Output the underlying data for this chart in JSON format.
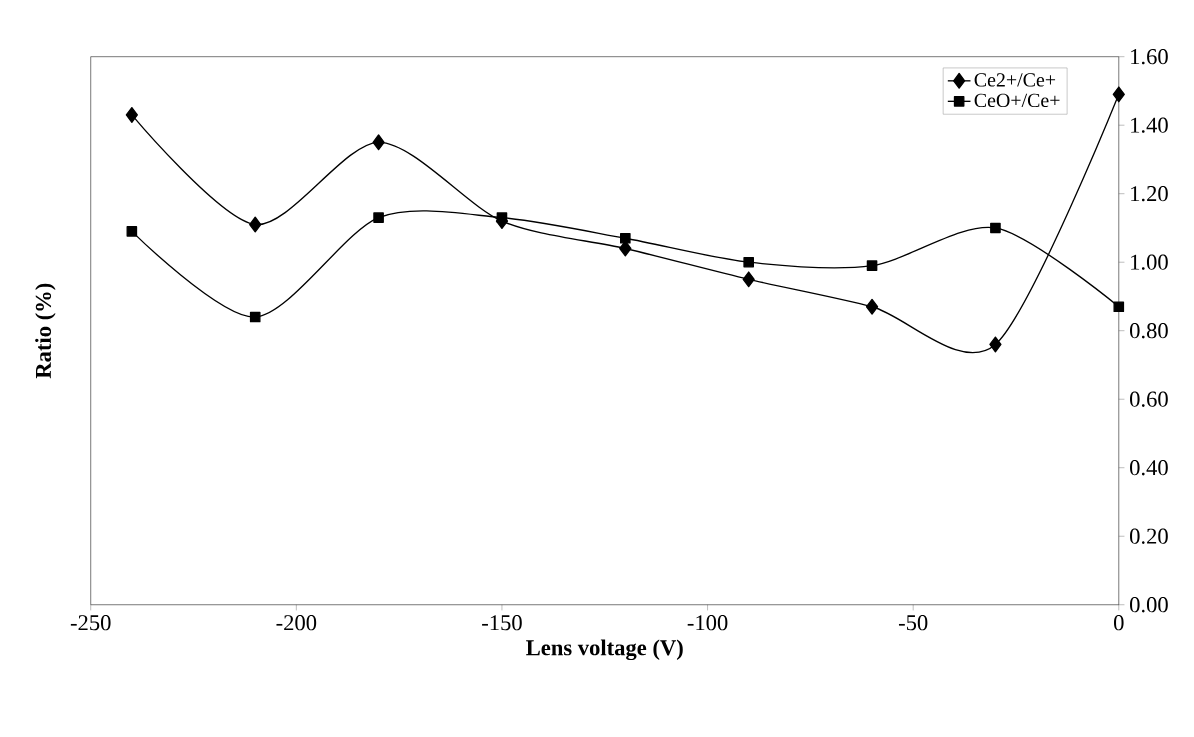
{
  "chart_data": {
    "type": "line",
    "xlabel": "Lens voltage (V)",
    "ylabel": "Ratio (%)",
    "x": [
      -240,
      -210,
      -180,
      -150,
      -120,
      -90,
      -60,
      -30,
      0
    ],
    "series": [
      {
        "name": "Ce2+/Ce+",
        "color": "#000000",
        "marker": "diamond",
        "values": [
          1.43,
          1.11,
          1.35,
          1.12,
          1.04,
          0.95,
          0.87,
          0.76,
          1.49
        ]
      },
      {
        "name": "CeO+/Ce+",
        "color": "#000000",
        "marker": "square",
        "values": [
          1.09,
          0.84,
          1.13,
          1.13,
          1.07,
          1.0,
          0.99,
          1.1,
          0.87
        ]
      }
    ],
    "xlim": [
      -250,
      0
    ],
    "xticks": [
      -250,
      -200,
      -150,
      -100,
      -50,
      0
    ],
    "ylim": [
      0,
      1.6
    ],
    "yticks": [
      {
        "value": 0,
        "label": "0.00"
      },
      {
        "value": 0.2,
        "label": "0.20"
      },
      {
        "value": 0.4,
        "label": "0.40"
      },
      {
        "value": 0.6,
        "label": "0.60"
      },
      {
        "value": 0.8,
        "label": "0.80"
      },
      {
        "value": 1.0,
        "label": "1.00"
      },
      {
        "value": 1.2,
        "label": "1.20"
      },
      {
        "value": 1.4,
        "label": "1.40"
      },
      {
        "value": 1.6,
        "label": "1.60"
      }
    ],
    "legend": "top right",
    "grid": false,
    "line_style": "solid"
  }
}
